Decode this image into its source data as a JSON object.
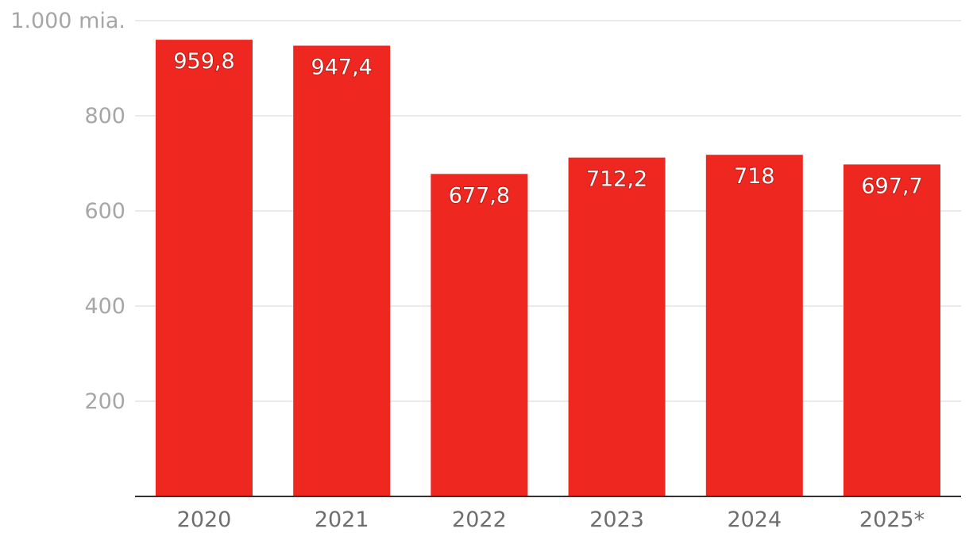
{
  "chart_data": {
    "type": "bar",
    "categories": [
      "2020",
      "2021",
      "2022",
      "2023",
      "2024",
      "2025*"
    ],
    "values": [
      959.8,
      947.4,
      677.8,
      712.2,
      718,
      697.7
    ],
    "value_labels": [
      "959,8",
      "947,4",
      "677,8",
      "712,2",
      "718",
      "697,7"
    ],
    "title": "",
    "xlabel": "",
    "ylabel": "",
    "ylim": [
      0,
      1000
    ],
    "yticks": [
      {
        "value": 200,
        "label": "200"
      },
      {
        "value": 400,
        "label": "400"
      },
      {
        "value": 600,
        "label": "600"
      },
      {
        "value": 800,
        "label": "800"
      },
      {
        "value": 1000,
        "label": "1.000 mia."
      }
    ],
    "grid": true,
    "bar_color": "#ee2820"
  }
}
